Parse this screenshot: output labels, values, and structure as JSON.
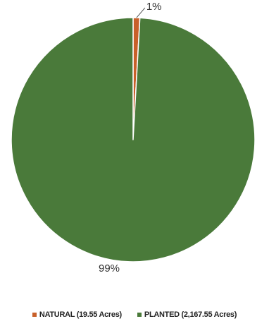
{
  "chart_data": {
    "type": "pie",
    "slices": [
      {
        "label": "NATURAL (19.55 Acres)",
        "value": 19.55,
        "percent_label": "1%",
        "color": "#c8602a"
      },
      {
        "label": "PLANTED (2,167.55 Acres)",
        "value": 2167.55,
        "percent_label": "99%",
        "color": "#4a7a3a"
      }
    ],
    "legend_position": "bottom",
    "start_angle": "top",
    "direction": "clockwise"
  }
}
